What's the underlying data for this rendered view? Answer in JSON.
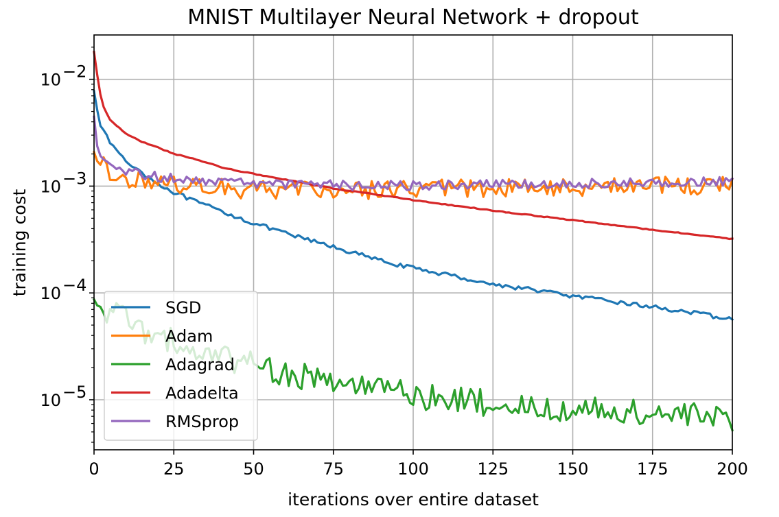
{
  "chart_data": {
    "type": "line",
    "title": "MNIST Multilayer Neural Network + dropout",
    "xlabel": "iterations over entire dataset",
    "ylabel": "training cost",
    "xlim": [
      0,
      200
    ],
    "ylim": [
      3.4e-06,
      0.026
    ],
    "yscale": "log",
    "grid": true,
    "legend_position": "lower-left",
    "x_ticks": [
      0,
      25,
      50,
      75,
      100,
      125,
      150,
      175,
      200
    ],
    "x_tick_labels": [
      "0",
      "25",
      "50",
      "75",
      "100",
      "125",
      "150",
      "175",
      "200"
    ],
    "y_ticks": [
      1e-05,
      0.0001,
      0.001,
      0.01
    ],
    "y_tick_labels": [
      {
        "base": "10",
        "exp": "−5"
      },
      {
        "base": "10",
        "exp": "−4"
      },
      {
        "base": "10",
        "exp": "−3"
      },
      {
        "base": "10",
        "exp": "−2"
      }
    ],
    "series": [
      {
        "name": "SGD",
        "color": "#1f77b4",
        "noise": 0.02,
        "x": [
          0,
          1,
          2,
          3,
          5,
          8,
          10,
          15,
          20,
          25,
          30,
          40,
          50,
          60,
          75,
          90,
          100,
          110,
          125,
          140,
          150,
          160,
          175,
          185,
          195,
          200
        ],
        "y": [
          0.0078,
          0.0052,
          0.0037,
          0.0032,
          0.0026,
          0.002,
          0.0017,
          0.00135,
          0.00105,
          0.00088,
          0.00075,
          0.00058,
          0.00045,
          0.00036,
          0.00027,
          0.0002,
          0.00017,
          0.00015,
          0.00012,
          0.000105,
          9.3e-05,
          8.5e-05,
          7.4e-05,
          6.7e-05,
          6e-05,
          5.6e-05
        ]
      },
      {
        "name": "Adam",
        "color": "#ff7f0e",
        "noise": 0.09,
        "x": [
          0,
          1,
          2,
          4,
          7,
          10,
          15,
          20,
          30,
          50,
          75,
          100,
          150,
          200
        ],
        "y": [
          0.0021,
          0.0017,
          0.0016,
          0.00145,
          0.0013,
          0.0012,
          0.00112,
          0.00105,
          0.001,
          0.00093,
          0.00092,
          0.00093,
          0.00098,
          0.00104
        ]
      },
      {
        "name": "Adagrad",
        "color": "#2ca02c",
        "noise": 0.13,
        "x": [
          0,
          2,
          5,
          10,
          15,
          20,
          25,
          30,
          40,
          50,
          60,
          75,
          90,
          100,
          125,
          150,
          175,
          200
        ],
        "y": [
          8.5e-05,
          7.5e-05,
          6.6e-05,
          5.5e-05,
          4.6e-05,
          3.9e-05,
          3.4e-05,
          3e-05,
          2.5e-05,
          2.1e-05,
          1.8e-05,
          1.5e-05,
          1.2e-05,
          1.1e-05,
          9.2e-06,
          8.2e-06,
          7.4e-06,
          6.6e-06
        ]
      },
      {
        "name": "Adadelta",
        "color": "#d62728",
        "noise": 0.004,
        "x": [
          0,
          1,
          2,
          3,
          5,
          8,
          10,
          15,
          20,
          25,
          30,
          40,
          50,
          60,
          75,
          90,
          100,
          125,
          150,
          175,
          200
        ],
        "y": [
          0.018,
          0.011,
          0.0072,
          0.0055,
          0.0042,
          0.0035,
          0.0031,
          0.0026,
          0.0023,
          0.002,
          0.00185,
          0.0015,
          0.0013,
          0.00115,
          0.00095,
          0.00082,
          0.00074,
          0.00059,
          0.00048,
          0.00039,
          0.00032
        ]
      },
      {
        "name": "RMSprop",
        "color": "#9467bd",
        "noise": 0.045,
        "x": [
          0,
          1,
          2,
          4,
          7,
          10,
          15,
          20,
          30,
          50,
          75,
          100,
          150,
          200
        ],
        "y": [
          0.0045,
          0.0024,
          0.0019,
          0.0016,
          0.00145,
          0.0014,
          0.0013,
          0.00122,
          0.00112,
          0.00105,
          0.00102,
          0.00101,
          0.00105,
          0.00112
        ]
      }
    ]
  }
}
